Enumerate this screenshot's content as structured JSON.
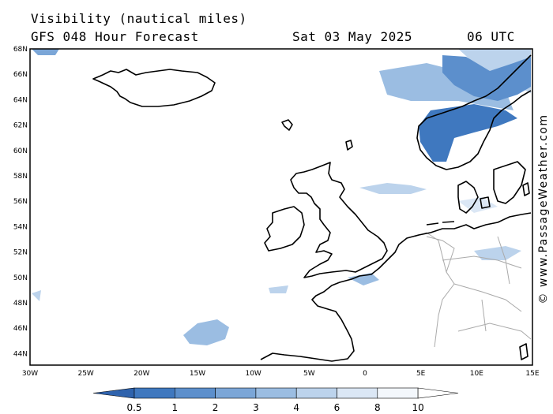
{
  "header": {
    "title": "Visibility (nautical miles)",
    "subtitle": "GFS 048 Hour Forecast",
    "date": "Sat 03 May 2025",
    "time": "06 UTC"
  },
  "credit": "© www.PassageWeather.com",
  "axes": {
    "x_ticks": [
      "30W",
      "25W",
      "20W",
      "15W",
      "10W",
      "5W",
      "0",
      "5E",
      "10E",
      "15E"
    ],
    "y_ticks": [
      "68N",
      "66N",
      "64N",
      "62N",
      "60N",
      "58N",
      "56N",
      "54N",
      "52N",
      "50N",
      "48N",
      "46N",
      "44N"
    ]
  },
  "colorbar": {
    "labels": [
      "0.5",
      "1",
      "2",
      "3",
      "4",
      "6",
      "8",
      "10"
    ],
    "colors": [
      "#2f63ad",
      "#3f78bf",
      "#5c8fcc",
      "#7ba6d7",
      "#9bbde2",
      "#bcd3ec",
      "#dbe7f5",
      "#f3f7fc",
      "#ffffff"
    ]
  },
  "icons": [
    "copyright-icon"
  ]
}
